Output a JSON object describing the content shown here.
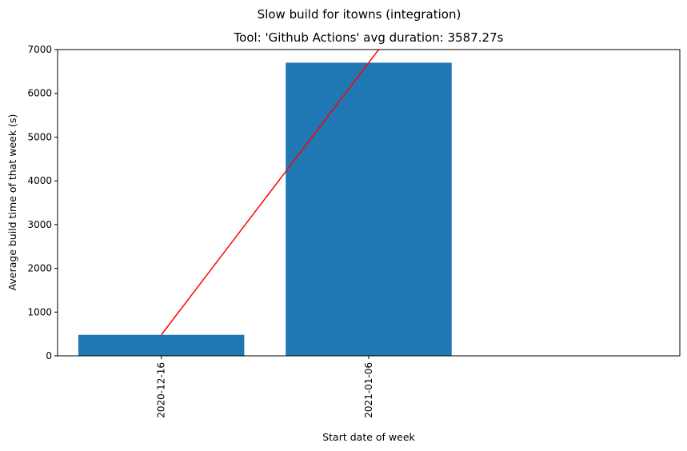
{
  "chart_data": {
    "type": "bar",
    "title": "Slow build for itowns (integration)",
    "subtitle": "Tool: 'Github Actions' avg duration: 3587.27s",
    "xlabel": "Start date of week",
    "ylabel": "Average build time of that week (s)",
    "categories": [
      "2020-12-16",
      "2021-01-06"
    ],
    "values": [
      480,
      6700
    ],
    "ylim": [
      0,
      7000
    ],
    "yticks": [
      0,
      1000,
      2000,
      3000,
      4000,
      5000,
      6000,
      7000
    ],
    "bar_color": "#1f77b4",
    "trend_line": {
      "color": "#ff0000",
      "x": [
        "2020-12-16",
        "2021-01-06"
      ],
      "y": [
        480,
        6700
      ]
    },
    "grid": false,
    "legend": "none"
  }
}
